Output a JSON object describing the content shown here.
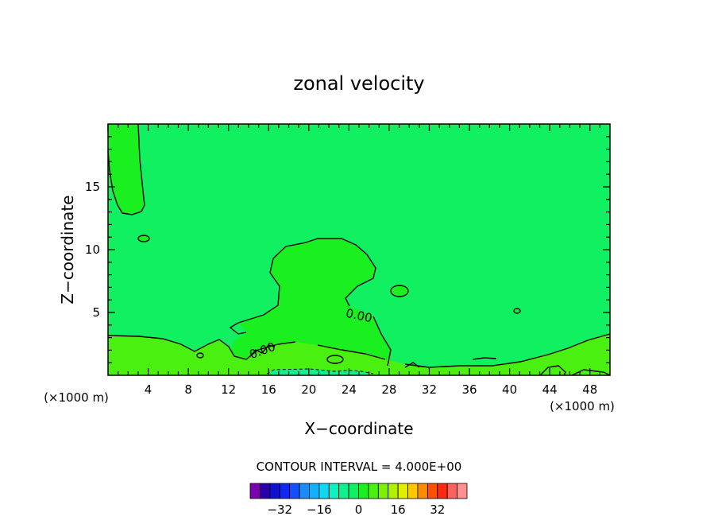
{
  "chart_data": {
    "type": "heatmap",
    "title": "zonal velocity",
    "xlabel": "X−coordinate",
    "ylabel": "Z−coordinate",
    "x_unit_left": "(×1000 m)",
    "x_unit_right": "(×1000 m)",
    "xlim": [
      0,
      50
    ],
    "ylim": [
      0,
      20
    ],
    "xticks": [
      4,
      8,
      12,
      16,
      20,
      24,
      28,
      32,
      36,
      40,
      44,
      48
    ],
    "yticks": [
      5,
      10,
      15
    ],
    "contour_label": "0.00",
    "contour_interval_text": "CONTOUR INTERVAL = 4.000E+00",
    "colorbar": {
      "tick_labels": [
        "−32",
        "−16",
        "0",
        "16",
        "32"
      ],
      "tick_values": [
        -32,
        -16,
        0,
        16,
        32
      ],
      "levels": [
        -40,
        -36,
        -32,
        -28,
        -24,
        -20,
        -16,
        -12,
        -8,
        -4,
        0,
        4,
        8,
        12,
        16,
        20,
        24,
        28,
        32,
        36,
        40
      ],
      "colors": [
        "#7a00b0",
        "#2a00a8",
        "#1010d0",
        "#1028f0",
        "#1050ff",
        "#1a8cff",
        "#14b0ff",
        "#10d8f0",
        "#10f0c0",
        "#10f090",
        "#10f060",
        "#1af020",
        "#4af010",
        "#80f000",
        "#b0f000",
        "#e0ee00",
        "#ffc800",
        "#ff8c00",
        "#ff5000",
        "#ff2810",
        "#ff6060",
        "#ff9090"
      ]
    },
    "field_colors": {
      "background": "#10f060",
      "positive_region": "#1af020",
      "near_surface": "#4af010",
      "negative_region": "#10f090"
    }
  }
}
